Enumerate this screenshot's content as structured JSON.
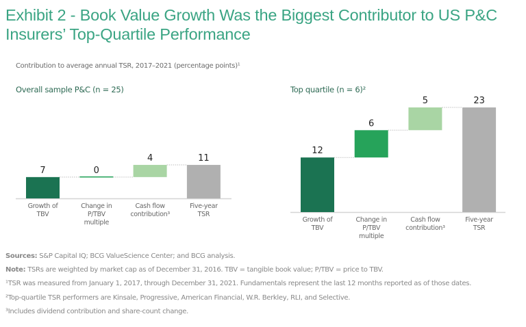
{
  "title": "Exhibit 2 - Book Value Growth Was the Biggest Contributor to US P&C Insurers’ Top-Quartile Performance",
  "subtitle": "Contribution to average annual TSR, 2017–2021 (percentage points)¹",
  "colors": {
    "title": "#3aa483",
    "growth_tbv": "#1b7352",
    "change_ptbv": "#26a35a",
    "cash_flow": "#a9d5a4",
    "tsr_total": "#b0b0b0"
  },
  "chart_data": [
    {
      "type": "bar",
      "subtype": "waterfall",
      "title": "Overall sample P&C (n = 25)",
      "categories": [
        "Growth of TBV",
        "Change in P/TBV multiple",
        "Cash flow contribution³",
        "Five-year TSR"
      ],
      "category_lines": [
        [
          "Growth of",
          "TBV"
        ],
        [
          "Change in",
          "P/TBV",
          "multiple"
        ],
        [
          "Cash flow",
          "contribution³"
        ],
        [
          "Five-year",
          "TSR"
        ]
      ],
      "values": [
        7,
        0,
        4,
        11
      ],
      "value_labels": [
        "7",
        "0",
        "4",
        "11"
      ],
      "total_index": 3,
      "ylim": [
        0,
        23
      ],
      "grid": false
    },
    {
      "type": "bar",
      "subtype": "waterfall",
      "title": "Top quartile (n = 6)²",
      "categories": [
        "Growth of TBV",
        "Change in P/TBV multiple",
        "Cash flow contribution³",
        "Five-year TSR"
      ],
      "category_lines": [
        [
          "Growth of",
          "TBV"
        ],
        [
          "Change in",
          "P/TBV",
          "multiple"
        ],
        [
          "Cash flow",
          "contribution³"
        ],
        [
          "Five-year",
          "TSR"
        ]
      ],
      "values": [
        12,
        6,
        5,
        23
      ],
      "value_labels": [
        "12",
        "6",
        "5",
        "23"
      ],
      "total_index": 3,
      "ylim": [
        0,
        23
      ],
      "grid": false
    }
  ],
  "notes": {
    "sources_label": "Sources:",
    "sources_text": " S&P Capital IQ; BCG ValueScience Center; and BCG analysis.",
    "note_label": "Note:",
    "note_text": " TSRs are weighted by market cap as of December 31, 2016. TBV = tangible book value; P/TBV = price to TBV.",
    "footnote1": "¹TSR was measured from January 1, 2017, through December 31, 2021. Fundamentals represent the last 12 months reported as of those dates.",
    "footnote2": "²Top-quartile TSR performers are Kinsale, Progressive, American Financial, W.R. Berkley, RLI, and Selective.",
    "footnote3": "³Includes dividend contribution and share-count change."
  }
}
